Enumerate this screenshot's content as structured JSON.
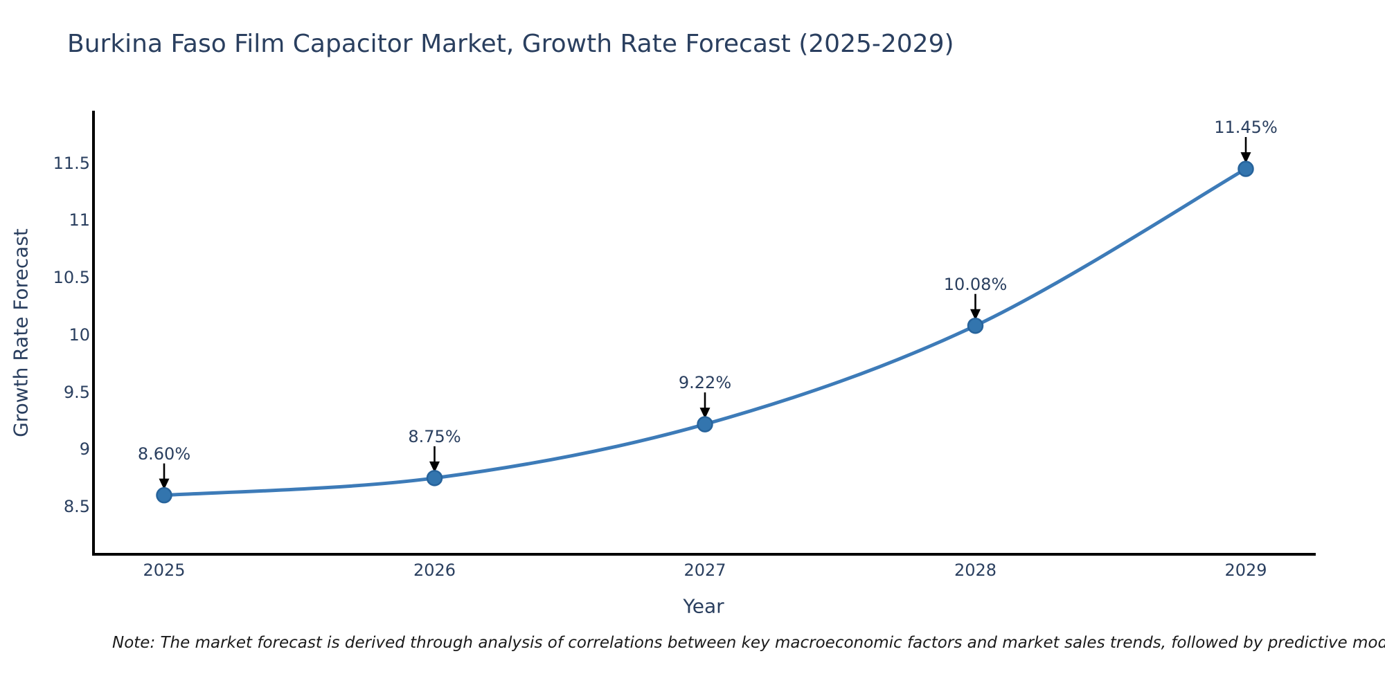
{
  "title": "Burkina Faso Film Capacitor Market, Growth Rate Forecast (2025-2029)",
  "note": "Note: The market forecast is derived through analysis of correlations between key macroeconomic factors and market sales trends, followed by predictive modeling to project future sales.",
  "colors": {
    "line": "#3d7bb8",
    "marker_fill": "#3375ae",
    "marker_border": "#27639b",
    "axis": "#000000",
    "text": "#2a3f5f",
    "note_text": "#1a1a1a",
    "background": "#ffffff",
    "annotation_arrow": "#000000"
  },
  "chart_data": {
    "type": "line",
    "title": "Burkina Faso Film Capacitor Market, Growth Rate Forecast (2025-2029)",
    "xlabel": "Year",
    "ylabel": "Growth Rate Forecast",
    "x": [
      2025,
      2026,
      2027,
      2028,
      2029
    ],
    "values": [
      8.6,
      8.75,
      9.22,
      10.08,
      11.45
    ],
    "point_labels": [
      "8.60%",
      "8.75%",
      "9.22%",
      "10.08%",
      "11.45%"
    ],
    "xtick_labels": [
      "2025",
      "2026",
      "2027",
      "2028",
      "2029"
    ],
    "ytick_values": [
      8.5,
      9,
      9.5,
      10,
      10.5,
      11,
      11.5
    ],
    "ytick_labels": [
      "8.5",
      "9",
      "9.5",
      "10",
      "10.5",
      "11",
      "11.5"
    ],
    "xlim": [
      2024.74,
      2029.26
    ],
    "ylim": [
      8.08,
      11.96
    ],
    "grid": false,
    "legend": "none",
    "line_shape": "spline",
    "markers": true,
    "annotations": "value labels with downward arrows above each point"
  }
}
